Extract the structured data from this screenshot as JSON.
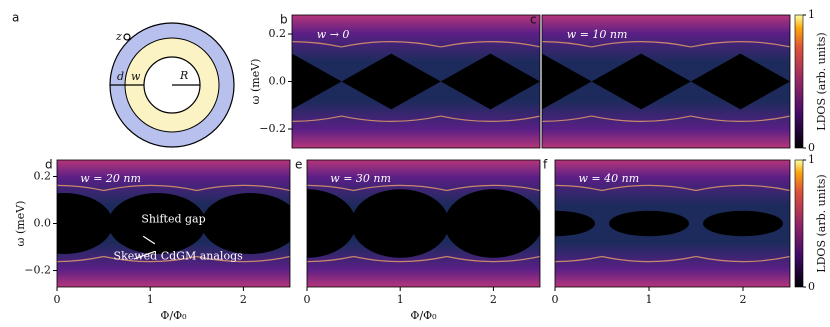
{
  "schematic": {
    "label": "a",
    "z": "z",
    "d": "d",
    "w": "w",
    "R": "R"
  },
  "panels": [
    {
      "label": "b",
      "annotation": "w → 0",
      "ylabel": "ω (meV)",
      "xlim": [
        0,
        2.5
      ],
      "ylim": [
        -0.28,
        0.28
      ],
      "yticks": [
        {
          "value": 0.2,
          "label": "0.2"
        },
        {
          "value": 0,
          "label": "0.0"
        },
        {
          "value": -0.2,
          "label": "−0.2"
        }
      ]
    },
    {
      "label": "c",
      "annotation": "w = 10 nm",
      "xlim": [
        0,
        2.5
      ],
      "ylim": [
        -0.28,
        0.28
      ]
    },
    {
      "label": "d",
      "annotation": "w = 20 nm",
      "ylabel": "ω (meV)",
      "xlabel": "Φ/Φ₀",
      "xlim": [
        0,
        2.5
      ],
      "ylim": [
        -0.27,
        0.27
      ],
      "xticks": [
        0,
        1,
        2
      ],
      "yticks": [
        {
          "value": 0.2,
          "label": "0.2"
        },
        {
          "value": 0,
          "label": "0.0"
        },
        {
          "value": -0.2,
          "label": "−0.2"
        }
      ],
      "notes": [
        "Shifted gap",
        "Skewed CdGM analogs"
      ]
    },
    {
      "label": "e",
      "annotation": "w = 30 nm",
      "xlabel": "Φ/Φ₀",
      "xlim": [
        0,
        2.5
      ],
      "ylim": [
        -0.27,
        0.27
      ],
      "xticks": [
        0,
        1,
        2
      ]
    },
    {
      "label": "f",
      "annotation": "w = 40 nm",
      "xlim": [
        0,
        2.5
      ],
      "ylim": [
        -0.27,
        0.27
      ],
      "xticks": [
        0,
        1,
        2
      ]
    }
  ],
  "colorbars": [
    {
      "label": "LDOS (arb. units)",
      "lim": [
        0,
        1
      ],
      "ticks": [
        0,
        1
      ]
    },
    {
      "label": "LDOS (arb. units)",
      "lim": [
        0,
        1
      ],
      "ticks": [
        0,
        1
      ]
    }
  ]
}
